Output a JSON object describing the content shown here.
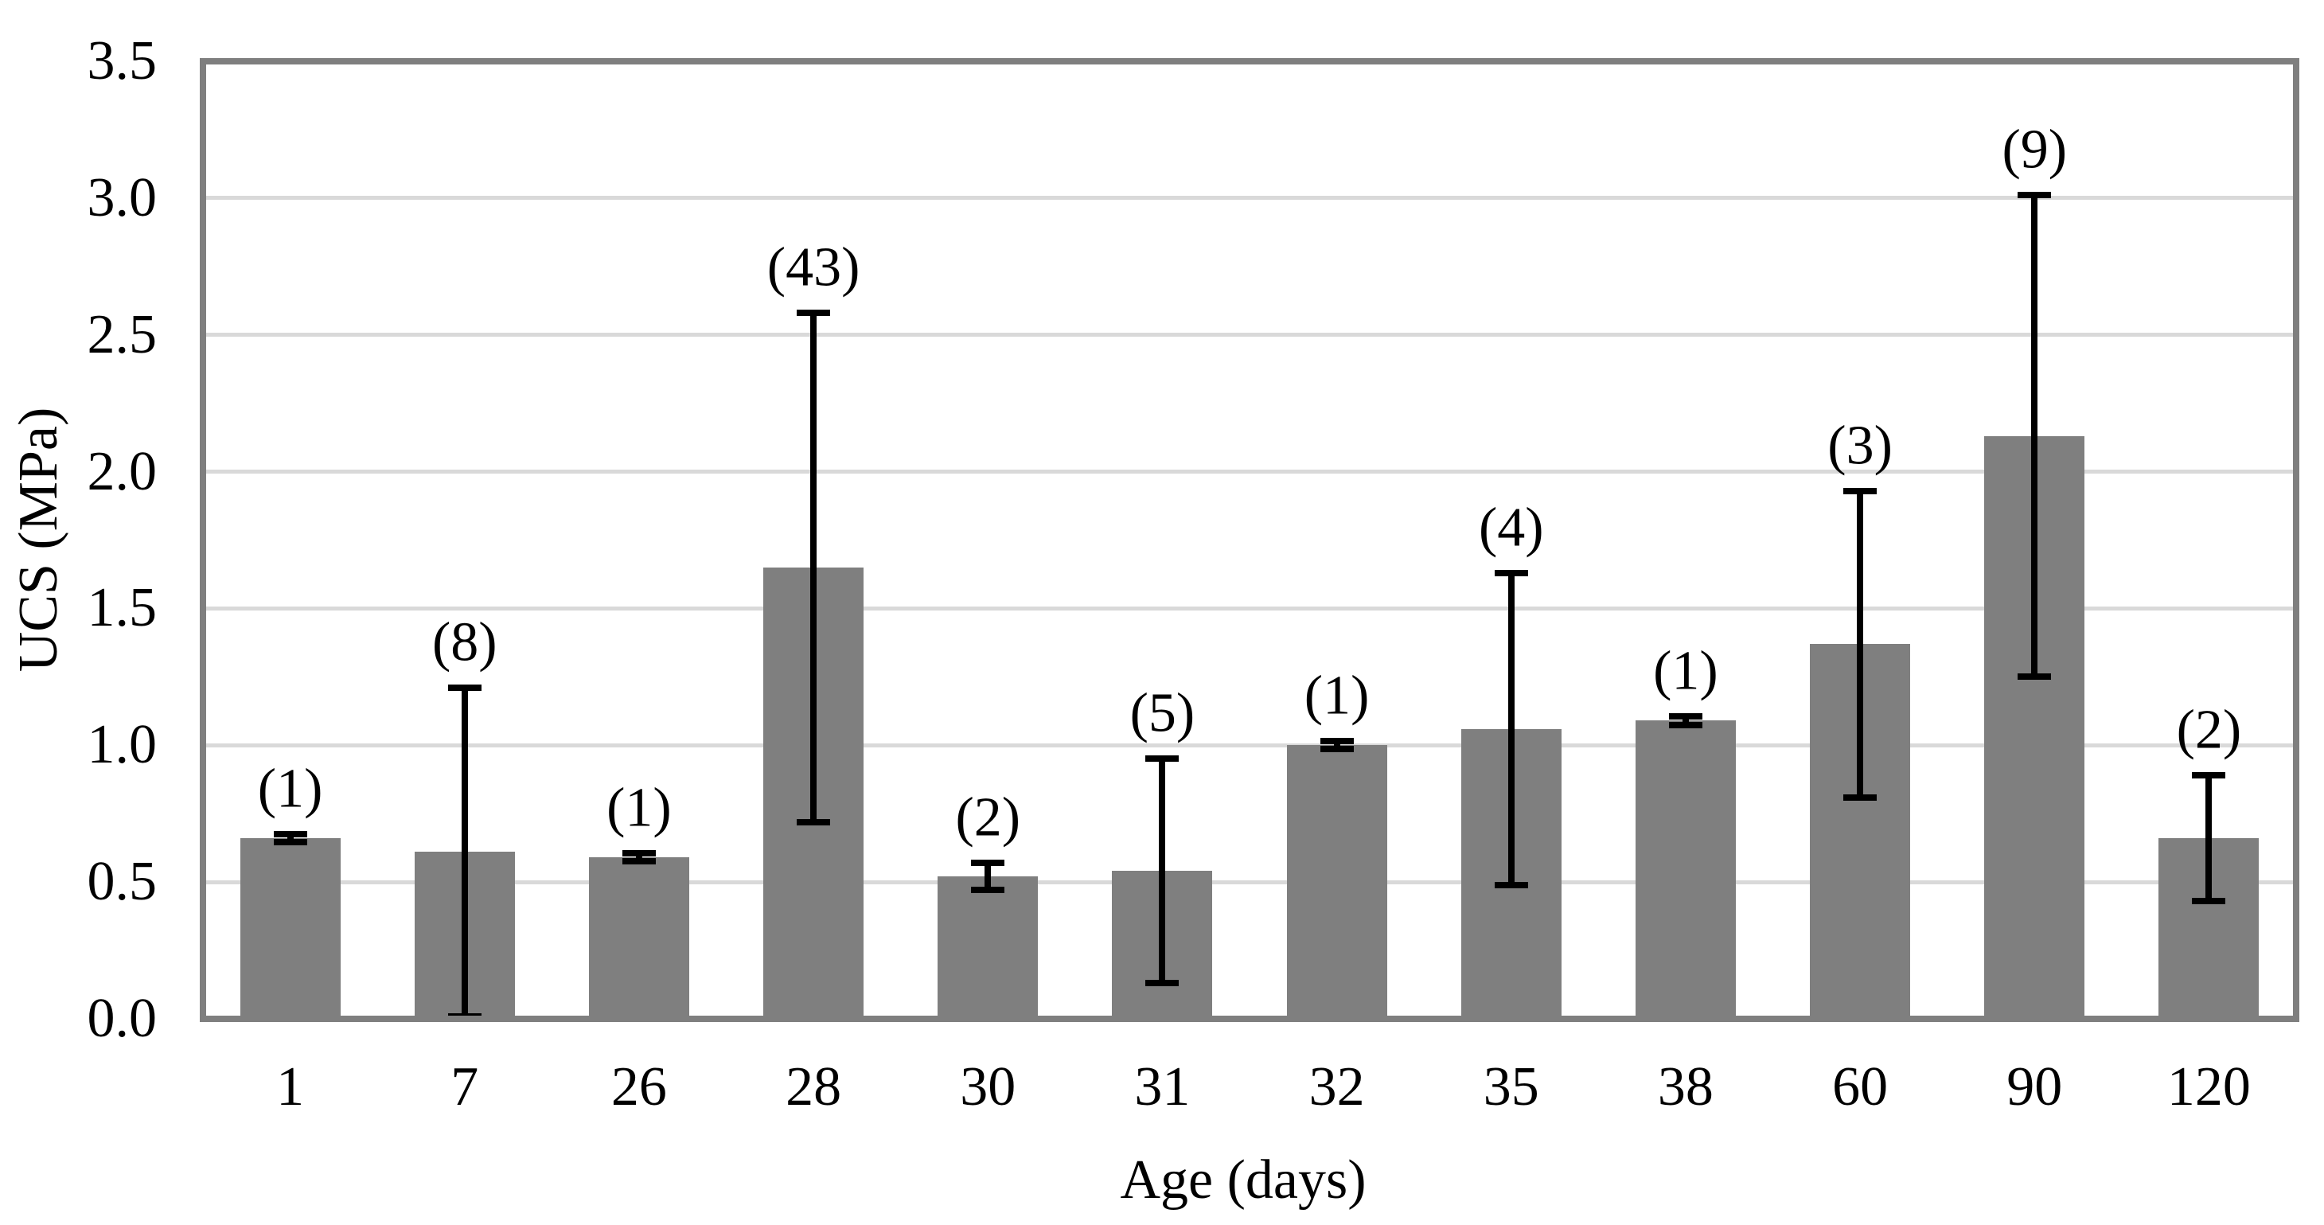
{
  "chart_data": {
    "type": "bar",
    "title": "",
    "xlabel": "Age (days)",
    "ylabel": "UCS (MPa)",
    "categories": [
      "1",
      "7",
      "26",
      "28",
      "30",
      "31",
      "32",
      "35",
      "38",
      "60",
      "90",
      "120"
    ],
    "series": [
      {
        "name": "UCS",
        "values": [
          0.66,
          0.61,
          0.59,
          1.65,
          0.52,
          0.54,
          1.0,
          1.06,
          1.09,
          1.37,
          2.13,
          0.66
        ],
        "error_bars": [
          0.015,
          0.6,
          0.015,
          0.93,
          0.05,
          0.41,
          0.015,
          0.57,
          0.015,
          0.56,
          0.88,
          0.23
        ],
        "point_labels": [
          "(1)",
          "(8)",
          "(1)",
          "(43)",
          "(2)",
          "(5)",
          "(1)",
          "(4)",
          "(1)",
          "(3)",
          "(9)",
          "(2)"
        ]
      }
    ],
    "ylim": [
      0,
      3.5
    ],
    "ytick_step": 0.5,
    "ytick_labels": [
      "0.0",
      "0.5",
      "1.0",
      "1.5",
      "2.0",
      "2.5",
      "3.0",
      "3.5"
    ],
    "grid": "horizontal",
    "legend": "none",
    "colors": {
      "bar": "#7f7f7f",
      "frame": "#7f7f7f",
      "gridline": "#d9d9d9",
      "error_bar": "#000000",
      "text": "#000000",
      "background": "#ffffff"
    }
  }
}
